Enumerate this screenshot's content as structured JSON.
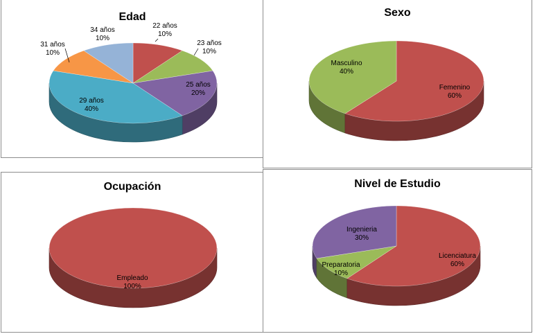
{
  "chart_data": [
    {
      "type": "pie",
      "title": "Edad",
      "categories": [
        "22 años",
        "23 años",
        "25 años",
        "29 años",
        "31 años",
        "34 años"
      ],
      "values": [
        10,
        10,
        20,
        40,
        10,
        10
      ],
      "value_labels": [
        "10%",
        "10%",
        "20%",
        "40%",
        "10%",
        "10%"
      ],
      "colors": [
        "#c0504d",
        "#9bbb59",
        "#8064a2",
        "#4bacc6",
        "#f79646",
        "#95b3d7"
      ]
    },
    {
      "type": "pie",
      "title": "Sexo",
      "categories": [
        "Femenino",
        "Masculino"
      ],
      "values": [
        60,
        40
      ],
      "value_labels": [
        "60%",
        "40%"
      ],
      "colors": [
        "#c0504d",
        "#9bbb59"
      ]
    },
    {
      "type": "pie",
      "title": "Ocupación",
      "categories": [
        "Empleado"
      ],
      "values": [
        100
      ],
      "value_labels": [
        "100%"
      ],
      "colors": [
        "#c0504d"
      ]
    },
    {
      "type": "pie",
      "title": "Nivel de Estudio",
      "categories": [
        "Licenciatura",
        "Preparatoria",
        "Ingenieria"
      ],
      "values": [
        60,
        10,
        30
      ],
      "value_labels": [
        "60%",
        "10%",
        "30%"
      ],
      "colors": [
        "#c0504d",
        "#9bbb59",
        "#8064a2"
      ]
    }
  ]
}
